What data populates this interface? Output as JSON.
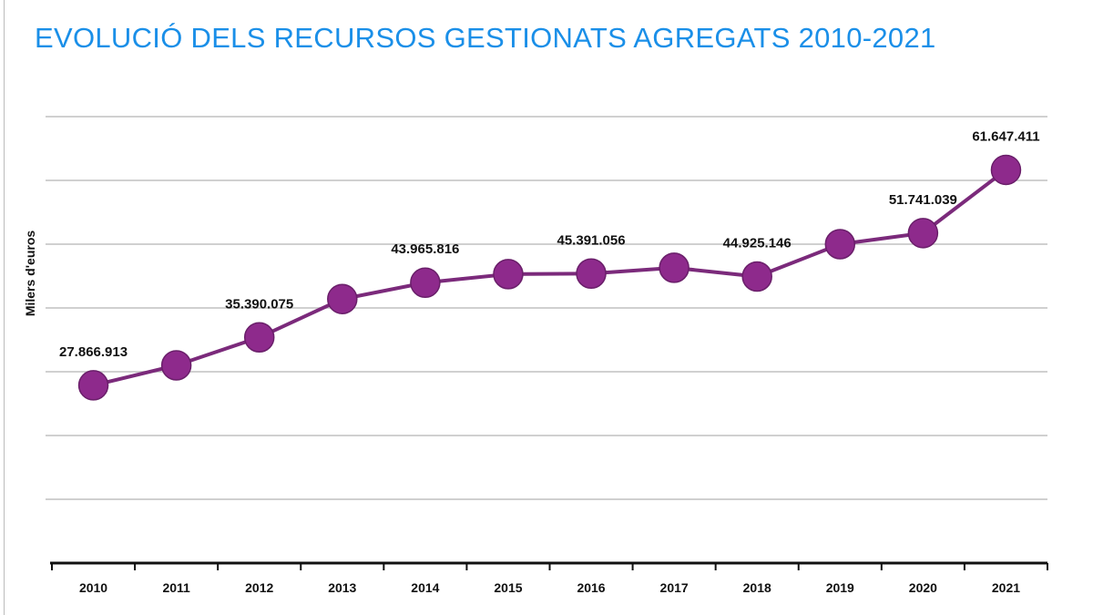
{
  "title": "EVOLUCIÓ DELS RECURSOS GESTIONATS AGREGATS 2010-2021",
  "colors": {
    "title": "#1a8fe8",
    "series": "#7b2a7b",
    "grid": "#d0d0d0",
    "axis": "#111111"
  },
  "chart_data": {
    "type": "line",
    "title": "EVOLUCIÓ DELS RECURSOS GESTIONATS AGREGATS 2010-2021",
    "xlabel": "",
    "ylabel": "Milers d'euros",
    "categories": [
      "2010",
      "2011",
      "2012",
      "2013",
      "2014",
      "2015",
      "2016",
      "2017",
      "2018",
      "2019",
      "2020",
      "2021"
    ],
    "values": [
      27866913,
      31000000,
      35390075,
      41400000,
      43965816,
      45300000,
      45391056,
      46300000,
      44925146,
      50000000,
      51741039,
      61647411
    ],
    "data_labels": [
      {
        "index": 0,
        "text": "27.866.913"
      },
      {
        "index": 2,
        "text": "35.390.075"
      },
      {
        "index": 4,
        "text": "43.965.816"
      },
      {
        "index": 6,
        "text": "45.391.056"
      },
      {
        "index": 8,
        "text": "44.925.146"
      },
      {
        "index": 10,
        "text": "51.741.039"
      },
      {
        "index": 11,
        "text": "61.647.411"
      }
    ],
    "ylim": [
      0,
      70000000
    ],
    "y_grid_step": 10000000,
    "y_tick_labels_shown": false,
    "grid": true,
    "legend": "none",
    "marker": "circle"
  }
}
